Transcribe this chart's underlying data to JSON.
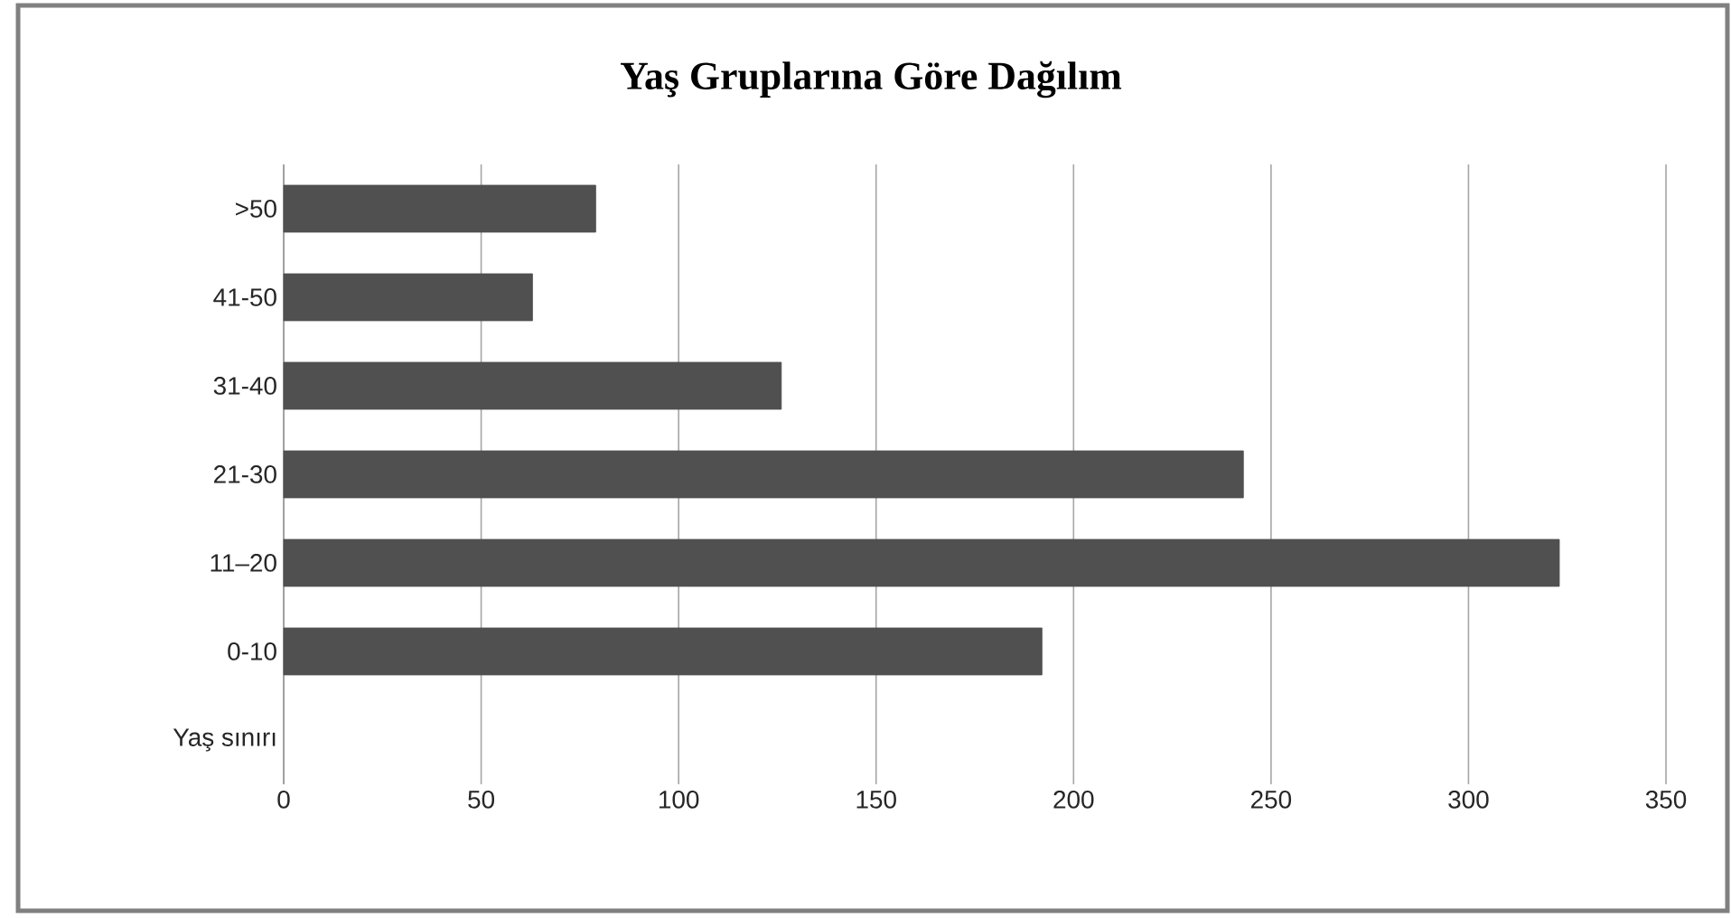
{
  "chart_data": {
    "type": "bar",
    "orientation": "horizontal",
    "title": "Yaş Gruplarına Göre Dağılım",
    "categories": [
      ">50",
      "41-50",
      "31-40",
      "21-30",
      "11–20",
      "0-10",
      "Yaş sınırı"
    ],
    "values": [
      79,
      63,
      126,
      243,
      323,
      192,
      null
    ],
    "color": "#505050",
    "xlim": [
      0,
      350
    ],
    "xticks": [
      0,
      50,
      100,
      150,
      200,
      250,
      300,
      350
    ],
    "grid": "x"
  }
}
